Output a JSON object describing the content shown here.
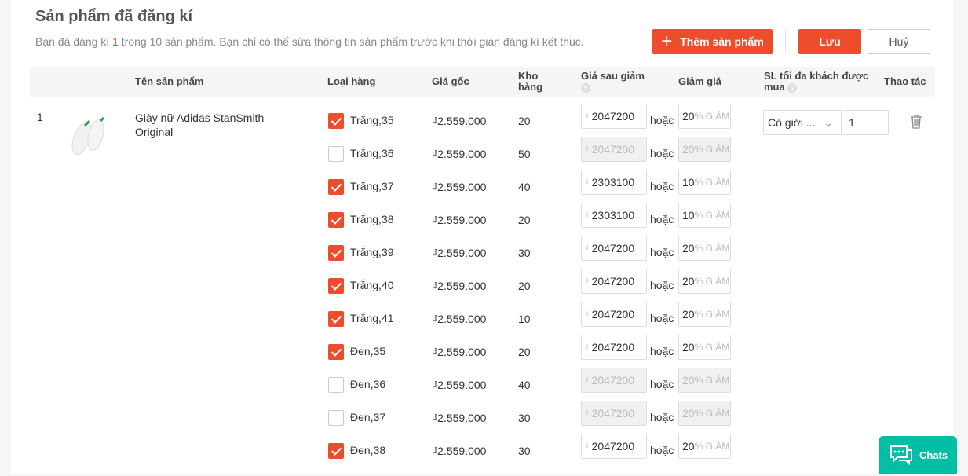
{
  "header": {
    "title": "Sản phẩm đã đăng kí",
    "sub_pre": "Bạn đã đăng kí ",
    "sub_count": "1",
    "sub_post": " trong 10 sản phẩm.  Bạn chỉ có thể sửa thông tin sản phẩm trước khi thời gian đăng kí kết thúc.",
    "add_label": "Thêm sản phẩm",
    "save_label": "Lưu",
    "cancel_label": "Huỷ"
  },
  "columns": {
    "name": "Tên sản phẩm",
    "variant": "Loại hàng",
    "price": "Giá gốc",
    "stock": "Kho hàng",
    "after": "Giá sau giảm",
    "discount": "Giảm giá",
    "limit": "SL tối đa khách được mua",
    "action": "Thao tác"
  },
  "product": {
    "index": "1",
    "name": "Giày nữ Adidas StanSmith Original",
    "limit_select": "Có giới ...",
    "limit_qty": "1"
  },
  "currency": "₫",
  "or_label": "hoặc",
  "discount_suffix": "% GIẢM",
  "variants": [
    {
      "label": "Trắng,35",
      "checked": true,
      "price": "₫2.559.000",
      "stock": "20",
      "after": "2047200",
      "discount": "20"
    },
    {
      "label": "Trắng,36",
      "checked": false,
      "price": "₫2.559.000",
      "stock": "50",
      "after": "2047200",
      "discount": "20"
    },
    {
      "label": "Trắng,37",
      "checked": true,
      "price": "₫2.559.000",
      "stock": "40",
      "after": "2303100",
      "discount": "10"
    },
    {
      "label": "Trắng,38",
      "checked": true,
      "price": "₫2.559.000",
      "stock": "20",
      "after": "2303100",
      "discount": "10"
    },
    {
      "label": "Trắng,39",
      "checked": true,
      "price": "₫2.559.000",
      "stock": "30",
      "after": "2047200",
      "discount": "20"
    },
    {
      "label": "Trắng,40",
      "checked": true,
      "price": "₫2.559.000",
      "stock": "20",
      "after": "2047200",
      "discount": "20"
    },
    {
      "label": "Trắng,41",
      "checked": true,
      "price": "₫2.559.000",
      "stock": "10",
      "after": "2047200",
      "discount": "20"
    },
    {
      "label": "Đen,35",
      "checked": true,
      "price": "₫2.559.000",
      "stock": "20",
      "after": "2047200",
      "discount": "20"
    },
    {
      "label": "Đen,36",
      "checked": false,
      "price": "₫2.559.000",
      "stock": "40",
      "after": "2047200",
      "discount": "20"
    },
    {
      "label": "Đen,37",
      "checked": false,
      "price": "₫2.559.000",
      "stock": "30",
      "after": "2047200",
      "discount": "20"
    },
    {
      "label": "Đen,38",
      "checked": true,
      "price": "₫2.559.000",
      "stock": "30",
      "after": "2047200",
      "discount": "20"
    }
  ],
  "chats_label": "Chats",
  "colors": {
    "accent": "#ee4d2d",
    "chat": "#00bfa5"
  }
}
